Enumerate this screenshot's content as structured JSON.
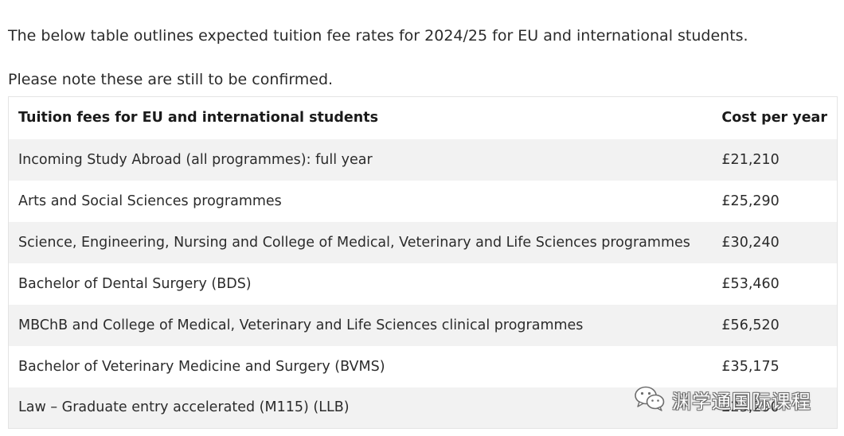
{
  "intro": {
    "line1": "The below table outlines expected tuition fee rates for 2024/25 for EU and international students.",
    "line2": "Please note these are still to be confirmed."
  },
  "table": {
    "headers": [
      "Tuition fees for EU and international students",
      "Cost per year"
    ],
    "rows": [
      [
        "Incoming Study Abroad (all programmes): full year",
        "£21,210"
      ],
      [
        "Arts and Social Sciences programmes",
        "£25,290"
      ],
      [
        "Science, Engineering, Nursing and College of Medical, Veterinary and Life Sciences programmes",
        "£30,240"
      ],
      [
        "Bachelor of Dental Surgery (BDS)",
        "£53,460"
      ],
      [
        "MBChB and College of Medical, Veterinary and Life Sciences clinical programmes",
        "£56,520"
      ],
      [
        "Bachelor of Veterinary Medicine and Surgery (BVMS)",
        "£35,175"
      ],
      [
        "Law – Graduate entry accelerated (M115) (LLB)",
        "£25,290"
      ]
    ]
  },
  "watermark": {
    "text": "渊学通国际课程",
    "icon": "wechat-icon",
    "stroke_color": "#6d6d6d"
  }
}
